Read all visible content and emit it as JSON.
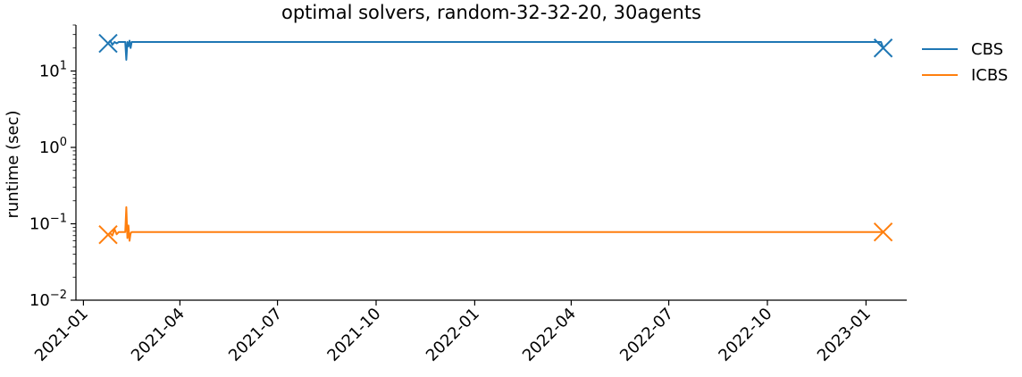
{
  "chart_data": {
    "type": "line",
    "title": "optimal solvers, random-32-32-20, 30agents",
    "xlabel": "",
    "ylabel": "runtime (sec)",
    "x_axis_type": "date",
    "y_scale": "log",
    "xlim": [
      "2020-12-25",
      "2023-02-08"
    ],
    "ylim": [
      0.01,
      40
    ],
    "x_ticks": [
      "2021-01",
      "2021-04",
      "2021-07",
      "2021-10",
      "2022-01",
      "2022-04",
      "2022-07",
      "2022-10",
      "2023-01"
    ],
    "y_ticks": [
      {
        "value": 0.01,
        "base": "10",
        "exp": "−2"
      },
      {
        "value": 0.1,
        "base": "10",
        "exp": "−1"
      },
      {
        "value": 1,
        "base": "10",
        "exp": "0"
      },
      {
        "value": 10,
        "base": "10",
        "exp": "1"
      }
    ],
    "grid": false,
    "legend_position": "outside-right",
    "series": [
      {
        "name": "CBS",
        "color": "#1f77b4",
        "points": [
          {
            "x": "2021-01-24",
            "y": 23
          },
          {
            "x": "2021-01-26",
            "y": 25
          },
          {
            "x": "2021-01-28",
            "y": 22
          },
          {
            "x": "2021-01-30",
            "y": 24
          },
          {
            "x": "2021-02-01",
            "y": 23
          },
          {
            "x": "2021-02-03",
            "y": 24
          },
          {
            "x": "2021-02-06",
            "y": 24
          },
          {
            "x": "2021-02-09",
            "y": 24
          },
          {
            "x": "2021-02-10",
            "y": 14
          },
          {
            "x": "2021-02-11",
            "y": 24
          },
          {
            "x": "2021-02-12",
            "y": 21
          },
          {
            "x": "2021-02-13",
            "y": 25
          },
          {
            "x": "2021-02-14",
            "y": 20
          },
          {
            "x": "2021-02-15",
            "y": 24
          },
          {
            "x": "2023-01-15",
            "y": 24
          },
          {
            "x": "2023-01-17",
            "y": 20
          }
        ],
        "markers": [
          {
            "x": "2021-01-24",
            "y": 23
          },
          {
            "x": "2023-01-17",
            "y": 20
          }
        ]
      },
      {
        "name": "ICBS",
        "color": "#ff7f0e",
        "points": [
          {
            "x": "2021-01-24",
            "y": 0.072
          },
          {
            "x": "2021-01-26",
            "y": 0.075
          },
          {
            "x": "2021-01-28",
            "y": 0.07
          },
          {
            "x": "2021-01-30",
            "y": 0.085
          },
          {
            "x": "2021-02-01",
            "y": 0.073
          },
          {
            "x": "2021-02-03",
            "y": 0.078
          },
          {
            "x": "2021-02-06",
            "y": 0.078
          },
          {
            "x": "2021-02-09",
            "y": 0.078
          },
          {
            "x": "2021-02-10",
            "y": 0.165
          },
          {
            "x": "2021-02-11",
            "y": 0.065
          },
          {
            "x": "2021-02-12",
            "y": 0.095
          },
          {
            "x": "2021-02-13",
            "y": 0.06
          },
          {
            "x": "2021-02-14",
            "y": 0.075
          },
          {
            "x": "2021-02-15",
            "y": 0.078
          },
          {
            "x": "2023-01-15",
            "y": 0.078
          },
          {
            "x": "2023-01-17",
            "y": 0.078
          }
        ],
        "markers": [
          {
            "x": "2021-01-24",
            "y": 0.072
          },
          {
            "x": "2023-01-17",
            "y": 0.078
          }
        ]
      }
    ]
  }
}
